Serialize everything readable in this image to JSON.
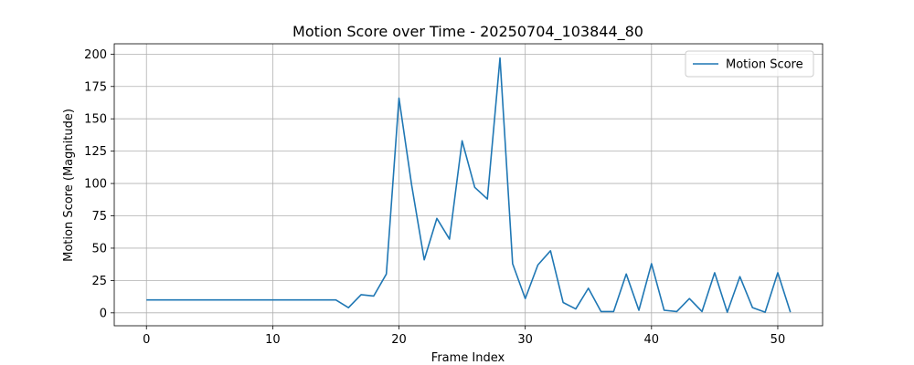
{
  "chart_data": {
    "type": "line",
    "title": "Motion Score over Time - 20250704_103844_80",
    "xlabel": "Frame Index",
    "ylabel": "Motion Score (Magnitude)",
    "xlim": [
      -2.55,
      53.55
    ],
    "ylim": [
      -10,
      208
    ],
    "x_ticks": [
      0,
      10,
      20,
      30,
      40,
      50
    ],
    "y_ticks": [
      0,
      25,
      50,
      75,
      100,
      125,
      150,
      175,
      200
    ],
    "grid": true,
    "legend_position": "top-right",
    "series": [
      {
        "name": "Motion Score",
        "color": "#1f77b4",
        "x": [
          0,
          1,
          2,
          3,
          4,
          5,
          6,
          7,
          8,
          9,
          10,
          11,
          12,
          13,
          14,
          15,
          16,
          17,
          18,
          19,
          20,
          21,
          22,
          23,
          24,
          25,
          26,
          27,
          28,
          29,
          30,
          31,
          32,
          33,
          34,
          35,
          36,
          37,
          38,
          39,
          40,
          41,
          42,
          43,
          44,
          45,
          46,
          47,
          48,
          49,
          50,
          51
        ],
        "values": [
          10,
          10,
          10,
          10,
          10,
          10,
          10,
          10,
          10,
          10,
          10,
          10,
          10,
          10,
          10,
          10,
          4,
          14,
          13,
          30,
          166,
          99,
          41,
          73,
          57,
          133,
          97,
          88,
          197,
          38,
          11,
          37,
          48,
          8,
          3,
          19,
          1,
          1,
          30,
          2,
          38,
          2,
          1,
          11,
          1,
          31,
          0.5,
          28,
          4,
          0.5,
          31,
          0.5
        ]
      }
    ]
  }
}
